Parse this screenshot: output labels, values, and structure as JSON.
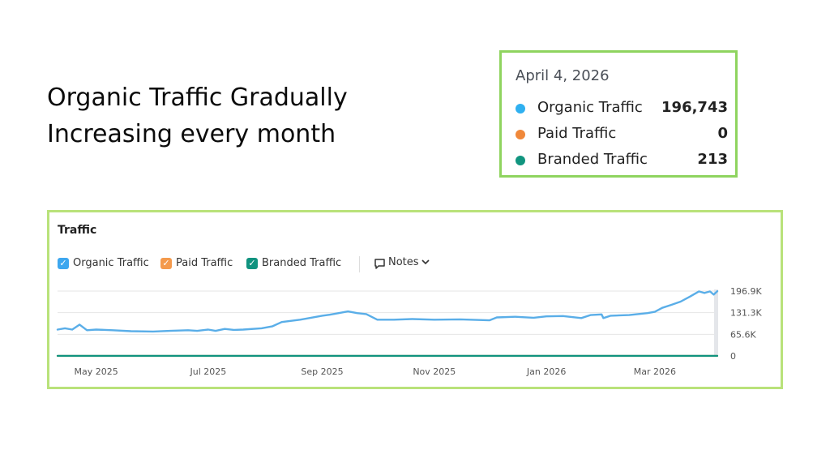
{
  "headline": {
    "line1": "Organic Traffic Gradually",
    "line2": "Increasing every month"
  },
  "tooltip": {
    "date": "April 4, 2026",
    "rows": [
      {
        "label": "Organic Traffic",
        "value": "196,743",
        "color": "#2fb0f0"
      },
      {
        "label": "Paid Traffic",
        "value": "0",
        "color": "#f0883a"
      },
      {
        "label": "Branded Traffic",
        "value": "213",
        "color": "#11957f"
      }
    ]
  },
  "panel": {
    "title": "Traffic",
    "legend": [
      {
        "label": "Organic Traffic",
        "color": "#3da7ef"
      },
      {
        "label": "Paid Traffic",
        "color": "#f49a4c"
      },
      {
        "label": "Branded Traffic",
        "color": "#10937f"
      }
    ],
    "notes_label": "Notes"
  },
  "chart_data": {
    "type": "line",
    "title": "Traffic",
    "x_ticks": [
      "May 2025",
      "Jul 2025",
      "Sep 2025",
      "Nov 2025",
      "Jan 2026",
      "Mar 2026"
    ],
    "y_ticks": [
      "196.9K",
      "131.3K",
      "65.6K",
      "0"
    ],
    "ylim": [
      0,
      196900
    ],
    "x_range": [
      "2025-04-10",
      "2026-04-04"
    ],
    "grid": true,
    "series": [
      {
        "name": "Organic Traffic",
        "color": "#5aaee8",
        "points": [
          [
            "2025-04-10",
            80000
          ],
          [
            "2025-04-14",
            84000
          ],
          [
            "2025-04-18",
            80000
          ],
          [
            "2025-04-22",
            95000
          ],
          [
            "2025-04-26",
            78000
          ],
          [
            "2025-05-01",
            80000
          ],
          [
            "2025-05-10",
            78000
          ],
          [
            "2025-05-20",
            75000
          ],
          [
            "2025-06-01",
            74000
          ],
          [
            "2025-06-10",
            76000
          ],
          [
            "2025-06-20",
            78000
          ],
          [
            "2025-06-25",
            76000
          ],
          [
            "2025-07-01",
            80000
          ],
          [
            "2025-07-05",
            76000
          ],
          [
            "2025-07-10",
            82000
          ],
          [
            "2025-07-15",
            79000
          ],
          [
            "2025-07-20",
            80000
          ],
          [
            "2025-07-30",
            84000
          ],
          [
            "2025-08-05",
            90000
          ],
          [
            "2025-08-10",
            103000
          ],
          [
            "2025-08-20",
            110000
          ],
          [
            "2025-08-25",
            115000
          ],
          [
            "2025-09-01",
            122000
          ],
          [
            "2025-09-05",
            125000
          ],
          [
            "2025-09-10",
            130000
          ],
          [
            "2025-09-15",
            135000
          ],
          [
            "2025-09-20",
            130000
          ],
          [
            "2025-09-25",
            127000
          ],
          [
            "2025-10-01",
            110000
          ],
          [
            "2025-10-10",
            110000
          ],
          [
            "2025-10-20",
            112000
          ],
          [
            "2025-11-01",
            110000
          ],
          [
            "2025-11-15",
            111000
          ],
          [
            "2025-12-01",
            108000
          ],
          [
            "2025-12-05",
            117000
          ],
          [
            "2025-12-15",
            119000
          ],
          [
            "2025-12-25",
            116000
          ],
          [
            "2026-01-01",
            120000
          ],
          [
            "2026-01-10",
            121000
          ],
          [
            "2026-01-20",
            115000
          ],
          [
            "2026-01-25",
            124000
          ],
          [
            "2026-01-31",
            126000
          ],
          [
            "2026-02-01",
            115000
          ],
          [
            "2026-02-05",
            122000
          ],
          [
            "2026-02-15",
            124000
          ],
          [
            "2026-02-25",
            130000
          ],
          [
            "2026-03-01",
            134000
          ],
          [
            "2026-03-05",
            146000
          ],
          [
            "2026-03-10",
            155000
          ],
          [
            "2026-03-15",
            165000
          ],
          [
            "2026-03-20",
            180000
          ],
          [
            "2026-03-25",
            196000
          ],
          [
            "2026-03-28",
            191000
          ],
          [
            "2026-03-31",
            196000
          ],
          [
            "2026-04-02",
            186000
          ],
          [
            "2026-04-04",
            196743
          ]
        ]
      },
      {
        "name": "Paid Traffic",
        "color": "#f49a4c",
        "points": [
          [
            "2025-04-10",
            0
          ],
          [
            "2026-04-04",
            0
          ]
        ]
      },
      {
        "name": "Branded Traffic",
        "color": "#10937f",
        "points": [
          [
            "2025-04-10",
            213
          ],
          [
            "2026-04-04",
            213
          ]
        ]
      }
    ]
  }
}
